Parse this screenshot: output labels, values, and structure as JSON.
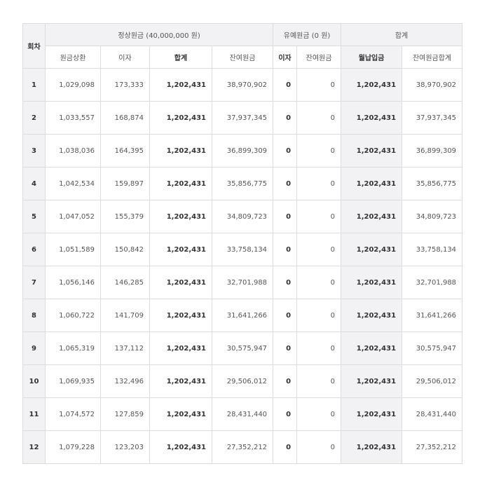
{
  "header": {
    "round": "회차",
    "group_regular": "정상원금 (40,000,000 원)",
    "group_grace": "유예원금 (0 원)",
    "group_total": "합계",
    "cols": [
      "원금상환",
      "이자",
      "합계",
      "잔여원금",
      "이자",
      "잔여원금",
      "월납입금",
      "잔여원금합계"
    ]
  },
  "rows": [
    [
      "1",
      "1,029,098",
      "173,333",
      "1,202,431",
      "38,970,902",
      "0",
      "0",
      "1,202,431",
      "38,970,902"
    ],
    [
      "2",
      "1,033,557",
      "168,874",
      "1,202,431",
      "37,937,345",
      "0",
      "0",
      "1,202,431",
      "37,937,345"
    ],
    [
      "3",
      "1,038,036",
      "164,395",
      "1,202,431",
      "36,899,309",
      "0",
      "0",
      "1,202,431",
      "36,899,309"
    ],
    [
      "4",
      "1,042,534",
      "159,897",
      "1,202,431",
      "35,856,775",
      "0",
      "0",
      "1,202,431",
      "35,856,775"
    ],
    [
      "5",
      "1,047,052",
      "155,379",
      "1,202,431",
      "34,809,723",
      "0",
      "0",
      "1,202,431",
      "34,809,723"
    ],
    [
      "6",
      "1,051,589",
      "150,842",
      "1,202,431",
      "33,758,134",
      "0",
      "0",
      "1,202,431",
      "33,758,134"
    ],
    [
      "7",
      "1,056,146",
      "146,285",
      "1,202,431",
      "32,701,988",
      "0",
      "0",
      "1,202,431",
      "32,701,988"
    ],
    [
      "8",
      "1,060,722",
      "141,709",
      "1,202,431",
      "31,641,266",
      "0",
      "0",
      "1,202,431",
      "31,641,266"
    ],
    [
      "9",
      "1,065,319",
      "137,112",
      "1,202,431",
      "30,575,947",
      "0",
      "0",
      "1,202,431",
      "30,575,947"
    ],
    [
      "10",
      "1,069,935",
      "132,496",
      "1,202,431",
      "29,506,012",
      "0",
      "0",
      "1,202,431",
      "29,506,012"
    ],
    [
      "11",
      "1,074,572",
      "127,859",
      "1,202,431",
      "28,431,440",
      "0",
      "0",
      "1,202,431",
      "28,431,440"
    ],
    [
      "12",
      "1,079,228",
      "123,203",
      "1,202,431",
      "27,352,212",
      "0",
      "0",
      "1,202,431",
      "27,352,212"
    ]
  ]
}
